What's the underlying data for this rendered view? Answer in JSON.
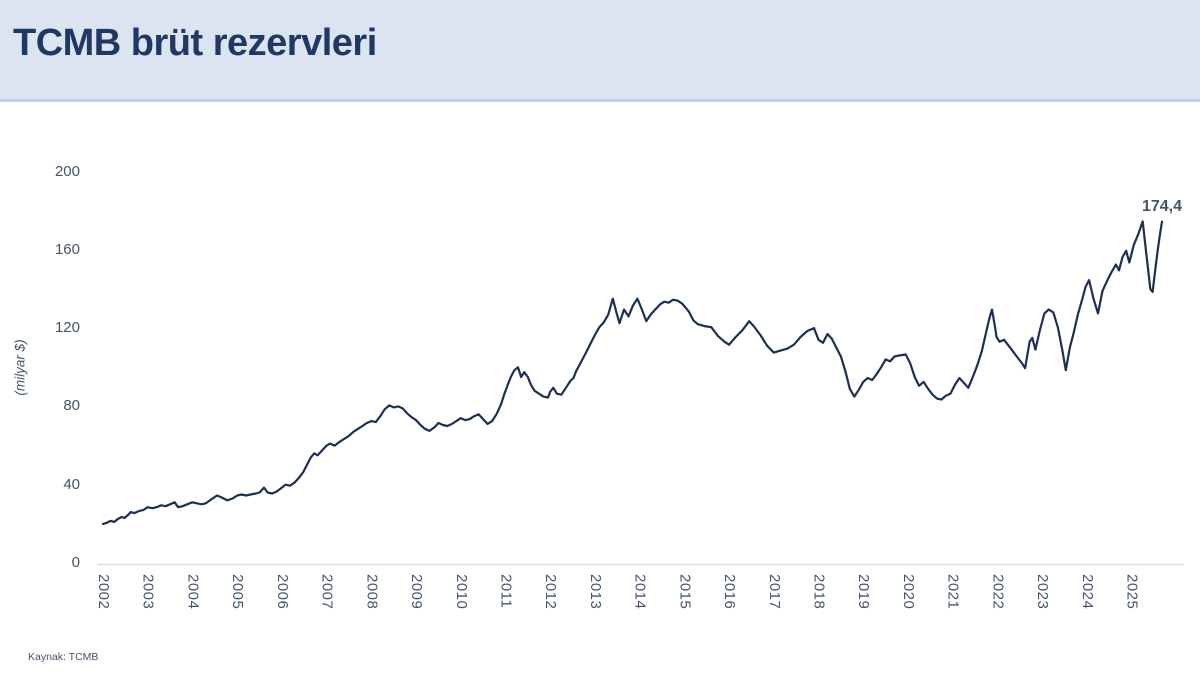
{
  "title_bar": {
    "title": "TCMB brüt rezervleri"
  },
  "footer": {
    "source": "Kaynak: TCMB"
  },
  "colors": {
    "header_bg": "#dce4f1",
    "header_border": "#c3cfe2",
    "title_text": "#1f3864",
    "line": "#1c2f55",
    "tick_text": "#44546a",
    "axis_line": "#d9d9d9"
  },
  "chart_data": {
    "type": "line",
    "title": "TCMB brüt rezervleri",
    "xlabel": "",
    "ylabel": "(milyar $)",
    "ylim": [
      0,
      200
    ],
    "y_ticks": [
      0,
      40,
      80,
      120,
      160,
      200
    ],
    "x_ticks": [
      "2002",
      "2003",
      "2004",
      "2005",
      "2006",
      "2007",
      "2008",
      "2009",
      "2010",
      "2011",
      "2012",
      "2013",
      "2014",
      "2015",
      "2016",
      "2017",
      "2018",
      "2019",
      "2020",
      "2021",
      "2022",
      "2023",
      "2024",
      "2025"
    ],
    "grid": false,
    "legend_position": "none",
    "line_color": "#1c2f55",
    "annotation": {
      "text": "174,4",
      "value": 174.4
    },
    "series": [
      {
        "name": "TCMB brüt rezervleri (milyar $)",
        "points": [
          [
            2002.0,
            20
          ],
          [
            2002.08,
            20.5
          ],
          [
            2002.17,
            21.5
          ],
          [
            2002.25,
            21
          ],
          [
            2002.33,
            22.5
          ],
          [
            2002.42,
            23.5
          ],
          [
            2002.48,
            23
          ],
          [
            2002.56,
            24.5
          ],
          [
            2002.62,
            26
          ],
          [
            2002.7,
            25.5
          ],
          [
            2002.8,
            26.5
          ],
          [
            2002.9,
            27
          ],
          [
            2003.0,
            28.5
          ],
          [
            2003.1,
            28
          ],
          [
            2003.2,
            28.5
          ],
          [
            2003.3,
            29.5
          ],
          [
            2003.4,
            29
          ],
          [
            2003.5,
            30
          ],
          [
            2003.6,
            31
          ],
          [
            2003.68,
            28.5
          ],
          [
            2003.78,
            29
          ],
          [
            2003.88,
            30
          ],
          [
            2004.0,
            31
          ],
          [
            2004.1,
            30.5
          ],
          [
            2004.2,
            30
          ],
          [
            2004.3,
            30.5
          ],
          [
            2004.42,
            32.5
          ],
          [
            2004.55,
            34.5
          ],
          [
            2004.65,
            33.5
          ],
          [
            2004.78,
            32
          ],
          [
            2004.9,
            33
          ],
          [
            2005.0,
            34.5
          ],
          [
            2005.1,
            35
          ],
          [
            2005.2,
            34.5
          ],
          [
            2005.3,
            35
          ],
          [
            2005.42,
            35.5
          ],
          [
            2005.5,
            36
          ],
          [
            2005.6,
            38.5
          ],
          [
            2005.68,
            36
          ],
          [
            2005.78,
            35.5
          ],
          [
            2005.88,
            36.5
          ],
          [
            2006.0,
            38.5
          ],
          [
            2006.08,
            40
          ],
          [
            2006.18,
            39.5
          ],
          [
            2006.28,
            41
          ],
          [
            2006.38,
            43.5
          ],
          [
            2006.48,
            46.5
          ],
          [
            2006.58,
            51
          ],
          [
            2006.65,
            54
          ],
          [
            2006.72,
            56
          ],
          [
            2006.8,
            55
          ],
          [
            2006.9,
            57.5
          ],
          [
            2007.0,
            60
          ],
          [
            2007.08,
            61
          ],
          [
            2007.18,
            60
          ],
          [
            2007.3,
            62
          ],
          [
            2007.4,
            63.5
          ],
          [
            2007.5,
            65
          ],
          [
            2007.6,
            67
          ],
          [
            2007.7,
            68.5
          ],
          [
            2007.8,
            70
          ],
          [
            2007.9,
            71.5
          ],
          [
            2008.0,
            72.5
          ],
          [
            2008.1,
            72
          ],
          [
            2008.2,
            75
          ],
          [
            2008.3,
            78.5
          ],
          [
            2008.4,
            80.5
          ],
          [
            2008.5,
            79.5
          ],
          [
            2008.6,
            80
          ],
          [
            2008.7,
            79
          ],
          [
            2008.8,
            76.5
          ],
          [
            2008.9,
            74.5
          ],
          [
            2009.0,
            73
          ],
          [
            2009.1,
            70.5
          ],
          [
            2009.2,
            68.5
          ],
          [
            2009.3,
            67.5
          ],
          [
            2009.42,
            69.5
          ],
          [
            2009.5,
            71.5
          ],
          [
            2009.6,
            70.5
          ],
          [
            2009.7,
            70
          ],
          [
            2009.8,
            71
          ],
          [
            2009.9,
            72.5
          ],
          [
            2010.0,
            74
          ],
          [
            2010.1,
            73
          ],
          [
            2010.2,
            73.5
          ],
          [
            2010.3,
            75
          ],
          [
            2010.4,
            76
          ],
          [
            2010.5,
            73.5
          ],
          [
            2010.6,
            71
          ],
          [
            2010.7,
            72.5
          ],
          [
            2010.8,
            76
          ],
          [
            2010.9,
            81
          ],
          [
            2010.97,
            86
          ],
          [
            2011.05,
            91
          ],
          [
            2011.12,
            95
          ],
          [
            2011.2,
            98.5
          ],
          [
            2011.28,
            100
          ],
          [
            2011.35,
            95
          ],
          [
            2011.42,
            97.5
          ],
          [
            2011.5,
            95
          ],
          [
            2011.57,
            91
          ],
          [
            2011.65,
            88
          ],
          [
            2011.75,
            86.5
          ],
          [
            2011.85,
            85
          ],
          [
            2011.95,
            84.5
          ],
          [
            2012.0,
            87.5
          ],
          [
            2012.07,
            89.5
          ],
          [
            2012.15,
            86.5
          ],
          [
            2012.25,
            86
          ],
          [
            2012.35,
            89.5
          ],
          [
            2012.45,
            93
          ],
          [
            2012.52,
            94.5
          ],
          [
            2012.58,
            98
          ],
          [
            2012.65,
            101
          ],
          [
            2012.72,
            104
          ],
          [
            2012.8,
            107.5
          ],
          [
            2012.9,
            112
          ],
          [
            2013.0,
            116.5
          ],
          [
            2013.1,
            120.5
          ],
          [
            2013.2,
            123
          ],
          [
            2013.3,
            127
          ],
          [
            2013.4,
            135
          ],
          [
            2013.48,
            128
          ],
          [
            2013.55,
            122.5
          ],
          [
            2013.65,
            129.5
          ],
          [
            2013.75,
            126
          ],
          [
            2013.85,
            131.5
          ],
          [
            2013.95,
            135
          ],
          [
            2014.05,
            129.5
          ],
          [
            2014.15,
            123.5
          ],
          [
            2014.25,
            127
          ],
          [
            2014.35,
            129.5
          ],
          [
            2014.45,
            132
          ],
          [
            2014.55,
            133.5
          ],
          [
            2014.65,
            133
          ],
          [
            2014.75,
            134.5
          ],
          [
            2014.85,
            134
          ],
          [
            2014.95,
            132.5
          ],
          [
            2015.1,
            128.5
          ],
          [
            2015.2,
            124
          ],
          [
            2015.3,
            122
          ],
          [
            2015.45,
            121
          ],
          [
            2015.6,
            120.5
          ],
          [
            2015.75,
            116
          ],
          [
            2015.9,
            113
          ],
          [
            2016.0,
            111.5
          ],
          [
            2016.15,
            115.5
          ],
          [
            2016.3,
            119
          ],
          [
            2016.45,
            123.5
          ],
          [
            2016.55,
            121
          ],
          [
            2016.7,
            116.5
          ],
          [
            2016.85,
            111
          ],
          [
            2017.0,
            107.5
          ],
          [
            2017.15,
            108.5
          ],
          [
            2017.3,
            109.5
          ],
          [
            2017.45,
            111.5
          ],
          [
            2017.6,
            115.5
          ],
          [
            2017.75,
            118.5
          ],
          [
            2017.9,
            120
          ],
          [
            2018.0,
            114
          ],
          [
            2018.1,
            112.5
          ],
          [
            2018.2,
            117
          ],
          [
            2018.3,
            114.5
          ],
          [
            2018.4,
            110
          ],
          [
            2018.5,
            105.5
          ],
          [
            2018.6,
            98
          ],
          [
            2018.7,
            89
          ],
          [
            2018.8,
            85
          ],
          [
            2018.9,
            88.5
          ],
          [
            2019.0,
            92.5
          ],
          [
            2019.1,
            94.5
          ],
          [
            2019.2,
            93.5
          ],
          [
            2019.3,
            96.5
          ],
          [
            2019.4,
            100
          ],
          [
            2019.5,
            104
          ],
          [
            2019.6,
            103
          ],
          [
            2019.7,
            105.5
          ],
          [
            2019.8,
            106
          ],
          [
            2019.95,
            106.5
          ],
          [
            2020.05,
            102
          ],
          [
            2020.15,
            95
          ],
          [
            2020.25,
            90.5
          ],
          [
            2020.35,
            92.5
          ],
          [
            2020.45,
            89
          ],
          [
            2020.55,
            86
          ],
          [
            2020.65,
            84
          ],
          [
            2020.75,
            83.5
          ],
          [
            2020.85,
            85.5
          ],
          [
            2020.95,
            86.5
          ],
          [
            2021.05,
            91
          ],
          [
            2021.15,
            94.5
          ],
          [
            2021.25,
            92
          ],
          [
            2021.35,
            89.5
          ],
          [
            2021.45,
            95
          ],
          [
            2021.55,
            101
          ],
          [
            2021.65,
            108
          ],
          [
            2021.75,
            118
          ],
          [
            2021.82,
            125
          ],
          [
            2021.88,
            129.5
          ],
          [
            2021.95,
            120
          ],
          [
            2021.98,
            115.5
          ],
          [
            2022.05,
            113
          ],
          [
            2022.15,
            114
          ],
          [
            2022.25,
            111
          ],
          [
            2022.35,
            108
          ],
          [
            2022.45,
            105
          ],
          [
            2022.55,
            102
          ],
          [
            2022.62,
            99.5
          ],
          [
            2022.72,
            113
          ],
          [
            2022.78,
            115
          ],
          [
            2022.85,
            109
          ],
          [
            2022.95,
            119
          ],
          [
            2023.05,
            127.5
          ],
          [
            2023.15,
            129.5
          ],
          [
            2023.25,
            128
          ],
          [
            2023.35,
            120.5
          ],
          [
            2023.45,
            109
          ],
          [
            2023.53,
            98.5
          ],
          [
            2023.62,
            110
          ],
          [
            2023.7,
            117
          ],
          [
            2023.8,
            127
          ],
          [
            2023.9,
            135
          ],
          [
            2023.97,
            141
          ],
          [
            2024.05,
            144.5
          ],
          [
            2024.15,
            135
          ],
          [
            2024.25,
            127.5
          ],
          [
            2024.35,
            139
          ],
          [
            2024.45,
            144
          ],
          [
            2024.55,
            148.5
          ],
          [
            2024.65,
            152.5
          ],
          [
            2024.72,
            149.5
          ],
          [
            2024.8,
            156.5
          ],
          [
            2024.88,
            159.5
          ],
          [
            2024.95,
            153.5
          ],
          [
            2025.05,
            162.5
          ],
          [
            2025.15,
            168
          ],
          [
            2025.25,
            174.5
          ],
          [
            2025.33,
            158
          ],
          [
            2025.42,
            140
          ],
          [
            2025.47,
            138.5
          ],
          [
            2025.53,
            150
          ],
          [
            2025.58,
            159
          ],
          [
            2025.63,
            167
          ],
          [
            2025.68,
            174.4
          ]
        ]
      }
    ]
  }
}
